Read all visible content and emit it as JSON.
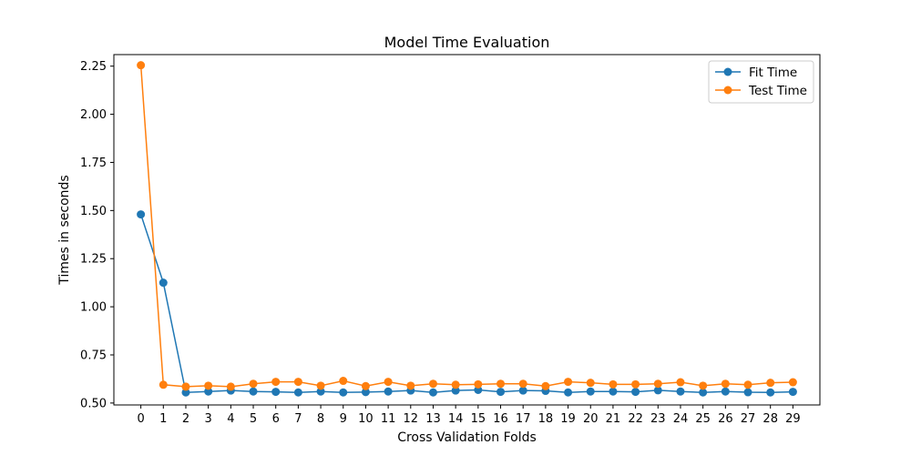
{
  "chart_data": {
    "type": "line",
    "title": "Model Time Evaluation",
    "xlabel": "Cross Validation Folds",
    "ylabel": "Times in seconds",
    "x": [
      0,
      1,
      2,
      3,
      4,
      5,
      6,
      7,
      8,
      9,
      10,
      11,
      12,
      13,
      14,
      15,
      16,
      17,
      18,
      19,
      20,
      21,
      22,
      23,
      24,
      25,
      26,
      27,
      28,
      29
    ],
    "xticks": [
      "0",
      "1",
      "2",
      "3",
      "4",
      "5",
      "6",
      "7",
      "8",
      "9",
      "10",
      "11",
      "12",
      "13",
      "14",
      "15",
      "16",
      "17",
      "18",
      "19",
      "20",
      "21",
      "22",
      "23",
      "24",
      "25",
      "26",
      "27",
      "28",
      "29"
    ],
    "yticks": [
      "0.50",
      "0.75",
      "1.00",
      "1.25",
      "1.50",
      "1.75",
      "2.00",
      "2.25"
    ],
    "ylim": [
      0.49,
      2.31
    ],
    "xlim": [
      -1.2,
      30.2
    ],
    "grid": false,
    "legend_position": "upper right",
    "series": [
      {
        "name": "Fit Time",
        "color": "#1f77b4",
        "marker": "circle",
        "values": [
          1.48,
          1.125,
          0.555,
          0.56,
          0.565,
          0.56,
          0.558,
          0.555,
          0.56,
          0.555,
          0.557,
          0.56,
          0.565,
          0.555,
          0.565,
          0.568,
          0.558,
          0.565,
          0.563,
          0.555,
          0.56,
          0.56,
          0.558,
          0.566,
          0.56,
          0.555,
          0.56,
          0.556,
          0.555,
          0.558
        ]
      },
      {
        "name": "Test Time",
        "color": "#ff7f0e",
        "marker": "circle",
        "values": [
          2.255,
          0.595,
          0.585,
          0.59,
          0.585,
          0.6,
          0.61,
          0.61,
          0.59,
          0.615,
          0.588,
          0.61,
          0.59,
          0.6,
          0.595,
          0.597,
          0.6,
          0.6,
          0.588,
          0.61,
          0.605,
          0.597,
          0.597,
          0.6,
          0.608,
          0.59,
          0.6,
          0.595,
          0.605,
          0.608
        ]
      }
    ]
  }
}
